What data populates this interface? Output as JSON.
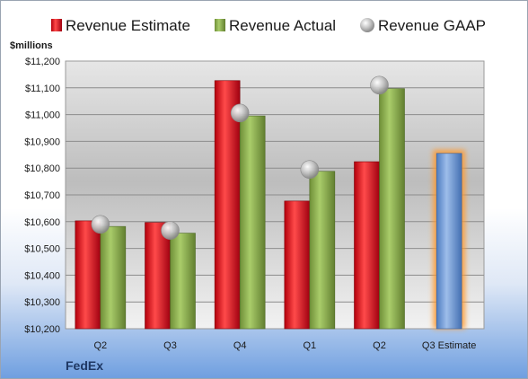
{
  "chart_data": {
    "type": "bar",
    "unit_label": "$millions",
    "categories": [
      "Q2",
      "Q3",
      "Q4",
      "Q1",
      "Q2",
      "Q3 Estimate"
    ],
    "series": [
      {
        "name": "Revenue Estimate",
        "kind": "bar",
        "color": "#d7191c",
        "values": [
          10603,
          10597,
          11127,
          10677,
          10824,
          null
        ]
      },
      {
        "name": "Revenue Actual",
        "kind": "bar",
        "color": "#8db050",
        "values": [
          10582,
          10557,
          10995,
          10788,
          11097,
          null
        ]
      },
      {
        "name": "Revenue GAAP",
        "kind": "marker",
        "color": "#b8b8b8",
        "values": [
          10590,
          10567,
          11006,
          10795,
          11110,
          null
        ]
      }
    ],
    "estimate": {
      "category_index": 5,
      "value": 10855,
      "color": "#7aa3dc"
    },
    "y_ticks": [
      "$10,200",
      "$10,300",
      "$10,400",
      "$10,500",
      "$10,600",
      "$10,700",
      "$10,800",
      "$10,900",
      "$11,000",
      "$11,100",
      "$11,200"
    ],
    "ylim": [
      10200,
      11200
    ],
    "grid": true,
    "legend_position": "top"
  },
  "footer": {
    "company": "FedEx"
  }
}
